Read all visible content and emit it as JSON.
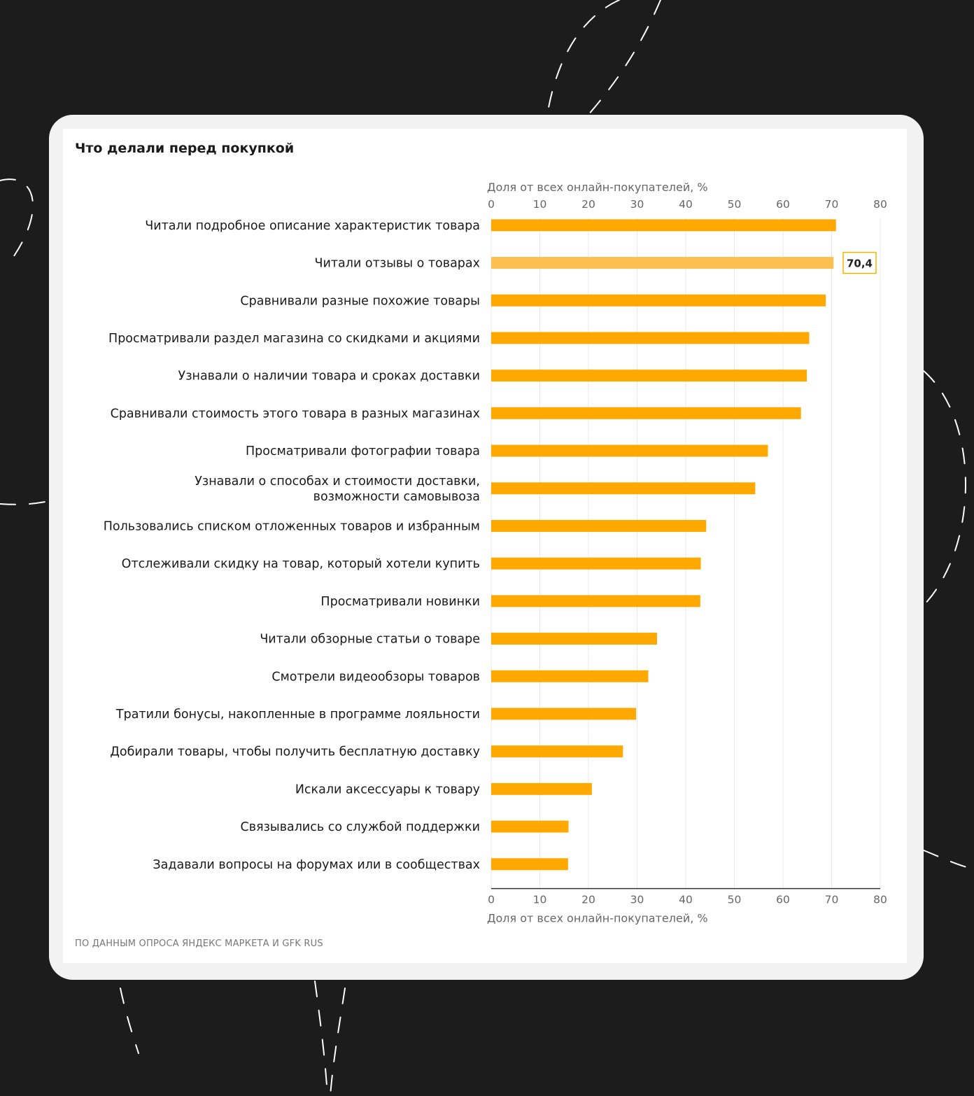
{
  "colors": {
    "background": "#1c1c1c",
    "card": "#f2f2f2",
    "panel": "#ffffff",
    "bar": "#ffa900",
    "bar_highlight": "#fcc051",
    "label_border": "#f5b400",
    "grid": "#e8e8e8",
    "decoration_stroke": "#ffffff"
  },
  "source_note": "ПО ДАННЫМ ОПРОСА ЯНДЕКС МАРКЕТА И GFK RUS",
  "chart_data": {
    "type": "bar",
    "orientation": "horizontal",
    "title": "Что делали перед покупкой",
    "xlabel": "Доля от всех онлайн-покупателей, %",
    "xlim": [
      0,
      80
    ],
    "ticks": [
      "0",
      "10",
      "20",
      "30",
      "40",
      "50",
      "60",
      "70",
      "80"
    ],
    "grid": true,
    "categories": [
      "Читали подробное описание характеристик товара",
      "Читали отзывы о товарах",
      "Сравнивали разные похожие товары",
      "Просматривали раздел магазина со скидками и акциями",
      "Узнавали о наличии товара и сроках доставки",
      "Сравнивали стоимость этого товара в разных магазинах",
      "Просматривали фотографии товара",
      "Узнавали о способах и стоимости доставки, возможности самовывоза",
      "Пользовались списком отложенных товаров и избранным",
      "Отслеживали скидку на товар, который хотели купить",
      "Просматривали новинки",
      "Читали обзорные статьи о товаре",
      "Смотрели видеообзоры товаров",
      "Тратили бонусы, накопленные в программе лояльности",
      "Добирали товары, чтобы получить бесплатную доставку",
      "Искали аксессуары к товару",
      "Связывались со службой поддержки",
      "Задавали вопросы на форумах или в сообществах"
    ],
    "values": [
      70.9,
      70.4,
      68.8,
      65.4,
      64.9,
      63.7,
      56.9,
      54.3,
      44.2,
      43.1,
      43.0,
      34.1,
      32.3,
      29.8,
      27.1,
      20.7,
      15.9,
      15.8
    ],
    "highlighted_index": 1,
    "data_label": "70,4"
  }
}
